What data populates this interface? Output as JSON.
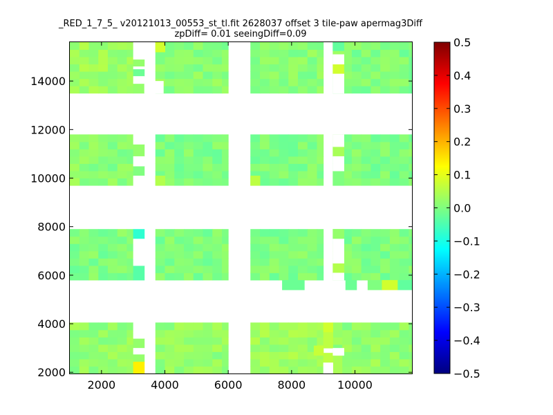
{
  "chart_data": {
    "type": "heatmap",
    "title_line1": "_RED_1_7_5_ v20121013_00553_st_tl.fit 2628037 offset 3 tile-paw apermag3Diff",
    "title_line2": "zpDiff= 0.01 seeingDiff=0.09",
    "xlim": [
      1000,
      11800
    ],
    "ylim": [
      1950,
      15600
    ],
    "xticks": [
      2000,
      4000,
      6000,
      8000,
      10000
    ],
    "yticks": [
      2000,
      4000,
      6000,
      8000,
      10000,
      12000,
      14000
    ],
    "colorbar": {
      "min": -0.5,
      "max": 0.5,
      "ticks": [
        "0.5",
        "0.4",
        "0.3",
        "0.2",
        "0.1",
        "0.0",
        "−0.1",
        "−0.2",
        "−0.3",
        "−0.4",
        "−0.5"
      ],
      "colormap": "jet"
    },
    "cell_size": [
      300,
      300
    ],
    "regions": [
      {
        "x": [
          1000,
          3000
        ],
        "y": [
          1950,
          4050
        ],
        "base": 0.02
      },
      {
        "x": [
          3700,
          6000
        ],
        "y": [
          1950,
          4050
        ],
        "base": 0.02
      },
      {
        "x": [
          6700,
          9000
        ],
        "y": [
          1950,
          4050
        ],
        "base": 0.03
      },
      {
        "x": [
          9300,
          11800
        ],
        "y": [
          1950,
          4050
        ],
        "base": 0.02
      },
      {
        "x": [
          1000,
          3000
        ],
        "y": [
          5800,
          7900
        ],
        "base": 0.0
      },
      {
        "x": [
          3700,
          6000
        ],
        "y": [
          5800,
          7900
        ],
        "base": 0.0
      },
      {
        "x": [
          6700,
          9000
        ],
        "y": [
          5800,
          7900
        ],
        "base": 0.0
      },
      {
        "x": [
          9300,
          11800
        ],
        "y": [
          5800,
          7900
        ],
        "base": 0.0
      },
      {
        "x": [
          1000,
          3000
        ],
        "y": [
          9700,
          11800
        ],
        "base": 0.01
      },
      {
        "x": [
          3700,
          6000
        ],
        "y": [
          9700,
          11800
        ],
        "base": 0.0
      },
      {
        "x": [
          6700,
          9000
        ],
        "y": [
          9700,
          11800
        ],
        "base": 0.0
      },
      {
        "x": [
          9300,
          11800
        ],
        "y": [
          9700,
          11800
        ],
        "base": 0.0
      },
      {
        "x": [
          1000,
          3000
        ],
        "y": [
          13500,
          15600
        ],
        "base": 0.03
      },
      {
        "x": [
          3700,
          6000
        ],
        "y": [
          13500,
          15600
        ],
        "base": 0.01
      },
      {
        "x": [
          6700,
          9000
        ],
        "y": [
          13500,
          15600
        ],
        "base": 0.01
      },
      {
        "x": [
          9300,
          11800
        ],
        "y": [
          13500,
          15600
        ],
        "base": 0.0
      }
    ],
    "highlights": [
      {
        "x": 3000,
        "y": 1950,
        "w": 350,
        "h": 500,
        "value": 0.14
      },
      {
        "x": 3000,
        "y": 2450,
        "w": 350,
        "h": 300,
        "value": 0.02
      },
      {
        "x": 3000,
        "y": 3000,
        "w": 350,
        "h": 400,
        "value": 0.02
      },
      {
        "x": 3000,
        "y": 5800,
        "w": 350,
        "h": 600,
        "value": -0.04
      },
      {
        "x": 3000,
        "y": 7500,
        "w": 350,
        "h": 400,
        "value": -0.08
      },
      {
        "x": 3000,
        "y": 10900,
        "w": 350,
        "h": 500,
        "value": 0.02
      },
      {
        "x": 3000,
        "y": 10100,
        "w": 350,
        "h": 400,
        "value": 0.0
      },
      {
        "x": 3000,
        "y": 13500,
        "w": 350,
        "h": 400,
        "value": 0.02
      },
      {
        "x": 3000,
        "y": 14200,
        "w": 350,
        "h": 300,
        "value": -0.02
      },
      {
        "x": 3000,
        "y": 14600,
        "w": 350,
        "h": 300,
        "value": 0.02
      },
      {
        "x": 9000,
        "y": 3650,
        "w": 300,
        "h": 400,
        "value": 0.08
      },
      {
        "x": 9000,
        "y": 3000,
        "w": 300,
        "h": 650,
        "value": 0.06
      },
      {
        "x": 9000,
        "y": 2400,
        "w": 300,
        "h": 400,
        "value": 0.06
      },
      {
        "x": 9300,
        "y": 15100,
        "w": 350,
        "h": 500,
        "value": 0.03
      },
      {
        "x": 9300,
        "y": 14300,
        "w": 350,
        "h": 400,
        "value": 0.08
      },
      {
        "x": 9300,
        "y": 10900,
        "w": 350,
        "h": 400,
        "value": 0.04
      },
      {
        "x": 9300,
        "y": 9700,
        "w": 350,
        "h": 600,
        "value": 0.0
      },
      {
        "x": 9300,
        "y": 6100,
        "w": 350,
        "h": 400,
        "value": 0.05
      },
      {
        "x": 9300,
        "y": 7500,
        "w": 350,
        "h": 400,
        "value": 0.02
      },
      {
        "x": 9300,
        "y": 15250,
        "w": 350,
        "h": 350,
        "value": -0.03
      },
      {
        "x": 7700,
        "y": 5400,
        "w": 700,
        "h": 400,
        "value": -0.02
      },
      {
        "x": 9700,
        "y": 5400,
        "w": 350,
        "h": 400,
        "value": -0.02
      },
      {
        "x": 10400,
        "y": 5400,
        "w": 450,
        "h": 400,
        "value": 0.0
      },
      {
        "x": 10850,
        "y": 5400,
        "w": 500,
        "h": 400,
        "value": 0.08
      },
      {
        "x": 11350,
        "y": 5400,
        "w": 450,
        "h": 400,
        "value": -0.03
      },
      {
        "x": 3700,
        "y": 15200,
        "w": 300,
        "h": 400,
        "value": 0.08
      },
      {
        "x": 6700,
        "y": 9700,
        "w": 300,
        "h": 400,
        "value": 0.06
      },
      {
        "x": 3700,
        "y": 9700,
        "w": 300,
        "h": 400,
        "value": 0.05
      },
      {
        "x": 8700,
        "y": 2700,
        "w": 300,
        "h": 400,
        "value": 0.07
      },
      {
        "x": 1000,
        "y": 9700,
        "w": 300,
        "h": 300,
        "value": 0.04
      }
    ],
    "masks": [
      {
        "x": 3000,
        "y": 2750,
        "w": 350,
        "h": 250
      },
      {
        "x": 3000,
        "y": 3400,
        "w": 350,
        "h": 250
      },
      {
        "x": 3000,
        "y": 3650,
        "w": 350,
        "h": 400
      },
      {
        "x": 3000,
        "y": 6400,
        "w": 350,
        "h": 300
      },
      {
        "x": 3000,
        "y": 6700,
        "w": 350,
        "h": 800
      },
      {
        "x": 3000,
        "y": 9700,
        "w": 350,
        "h": 400
      },
      {
        "x": 3000,
        "y": 10500,
        "w": 350,
        "h": 400
      },
      {
        "x": 3000,
        "y": 11400,
        "w": 350,
        "h": 400
      },
      {
        "x": 3000,
        "y": 13900,
        "w": 350,
        "h": 300
      },
      {
        "x": 3000,
        "y": 14500,
        "w": 350,
        "h": 100
      },
      {
        "x": 3000,
        "y": 14900,
        "w": 350,
        "h": 700
      },
      {
        "x": 3350,
        "y": 13500,
        "w": 600,
        "h": 500
      },
      {
        "x": 9000,
        "y": 1950,
        "w": 300,
        "h": 450
      },
      {
        "x": 9300,
        "y": 2700,
        "w": 350,
        "h": 300
      },
      {
        "x": 9300,
        "y": 10300,
        "w": 350,
        "h": 600
      },
      {
        "x": 9300,
        "y": 11300,
        "w": 350,
        "h": 500
      },
      {
        "x": 9300,
        "y": 13500,
        "w": 350,
        "h": 800
      },
      {
        "x": 9300,
        "y": 14700,
        "w": 350,
        "h": 400
      },
      {
        "x": 9300,
        "y": 5800,
        "w": 350,
        "h": 300
      },
      {
        "x": 9300,
        "y": 6500,
        "w": 350,
        "h": 1000
      }
    ]
  }
}
